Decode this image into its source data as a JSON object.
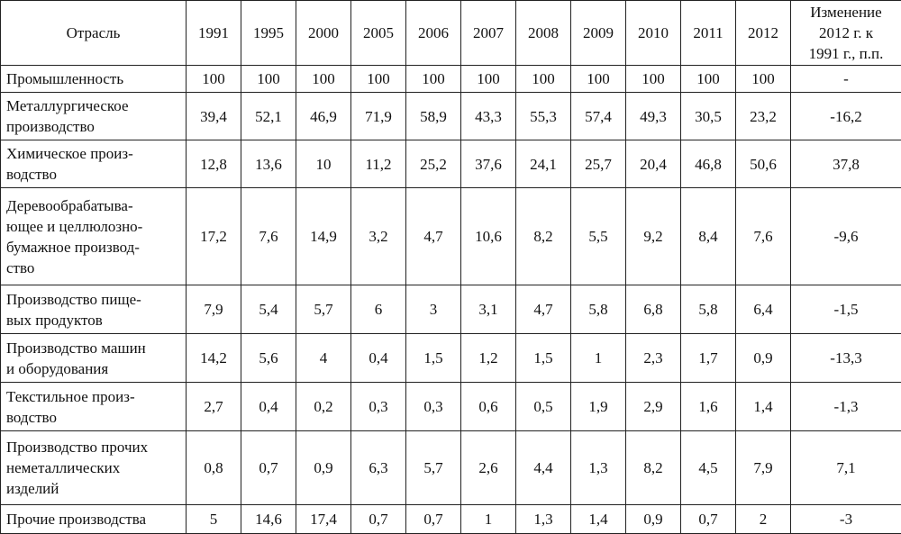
{
  "table": {
    "header": [
      "Отрасль",
      "1991",
      "1995",
      "2000",
      "2005",
      "2006",
      "2007",
      "2008",
      "2009",
      "2010",
      "2011",
      "2012",
      "Изменение\n2012 г. к\n1991 г., п.п."
    ],
    "rows": [
      [
        "Промышленность",
        "100",
        "100",
        "100",
        "100",
        "100",
        "100",
        "100",
        "100",
        "100",
        "100",
        "100",
        "-"
      ],
      [
        "Металлургическое\nпроизводство",
        "39,4",
        "52,1",
        "46,9",
        "71,9",
        "58,9",
        "43,3",
        "55,3",
        "57,4",
        "49,3",
        "30,5",
        "23,2",
        "-16,2"
      ],
      [
        "Химическое произ-\nводство",
        "12,8",
        "13,6",
        "10",
        "11,2",
        "25,2",
        "37,6",
        "24,1",
        "25,7",
        "20,4",
        "46,8",
        "50,6",
        "37,8"
      ],
      [
        "Деревообрабатыва-\nющее и целлюлозно-\nбумажное производ-\nство",
        "17,2",
        "7,6",
        "14,9",
        "3,2",
        "4,7",
        "10,6",
        "8,2",
        "5,5",
        "9,2",
        "8,4",
        "7,6",
        "-9,6"
      ],
      [
        "Производство пище-\nвых продуктов",
        "7,9",
        "5,4",
        "5,7",
        "6",
        "3",
        "3,1",
        "4,7",
        "5,8",
        "6,8",
        "5,8",
        "6,4",
        "-1,5"
      ],
      [
        "Производство машин\nи оборудования",
        "14,2",
        "5,6",
        "4",
        "0,4",
        "1,5",
        "1,2",
        "1,5",
        "1",
        "2,3",
        "1,7",
        "0,9",
        "-13,3"
      ],
      [
        "Текстильное произ-\nводство",
        "2,7",
        "0,4",
        "0,2",
        "0,3",
        "0,3",
        "0,6",
        "0,5",
        "1,9",
        "2,9",
        "1,6",
        "1,4",
        "-1,3"
      ],
      [
        "Производство прочих\nнеметаллических\nизделий",
        "0,8",
        "0,7",
        "0,9",
        "6,3",
        "5,7",
        "2,6",
        "4,4",
        "1,3",
        "8,2",
        "4,5",
        "7,9",
        "7,1"
      ],
      [
        "Прочие производства",
        "5",
        "14,6",
        "17,4",
        "0,7",
        "0,7",
        "1",
        "1,3",
        "1,4",
        "0,9",
        "0,7",
        "2",
        "-3"
      ]
    ]
  }
}
